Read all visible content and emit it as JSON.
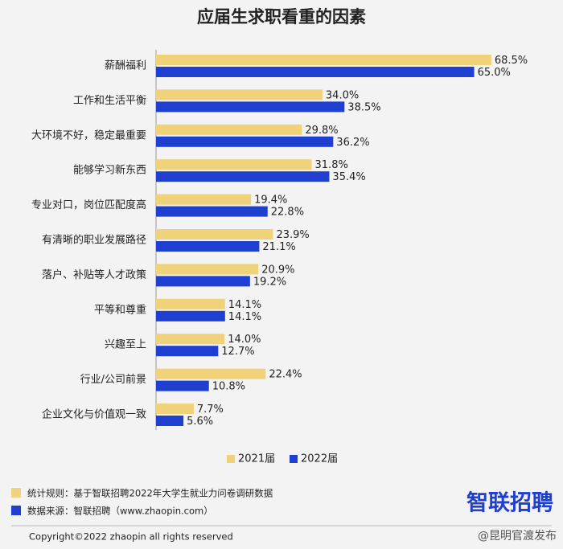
{
  "chart_data": {
    "type": "bar",
    "orientation": "horizontal",
    "title": "应届生求职看重的因素",
    "categories": [
      "薪酬福利",
      "工作和生活平衡",
      "大环境不好，稳定最重要",
      "能够学习新东西",
      "专业对口，岗位匹配度高",
      "有清晰的职业发展路径",
      "落户、补贴等人才政策",
      "平等和尊重",
      "兴趣至上",
      "行业/公司前景",
      "企业文化与价值观一致"
    ],
    "series": [
      {
        "name": "2021届",
        "color": "#f0d27a",
        "values": [
          68.5,
          34.0,
          29.8,
          31.8,
          19.4,
          23.9,
          20.9,
          14.1,
          14.0,
          22.4,
          7.7
        ],
        "value_labels": [
          "68.5%",
          "34.0%",
          "29.8%",
          "31.8%",
          "19.4%",
          "23.9%",
          "20.9%",
          "14.1%",
          "14.0%",
          "22.4%",
          "7.7%"
        ]
      },
      {
        "name": "2022届",
        "color": "#1f3fd1",
        "values": [
          65.0,
          38.5,
          36.2,
          35.4,
          22.8,
          21.1,
          19.2,
          14.1,
          12.7,
          10.8,
          5.6
        ],
        "value_labels": [
          "65.0%",
          "38.5%",
          "36.2%",
          "35.4%",
          "22.8%",
          "21.1%",
          "19.2%",
          "14.1%",
          "12.7%",
          "10.8%",
          "5.6%"
        ]
      }
    ],
    "xlim": [
      0,
      70
    ],
    "legend": "bottom"
  },
  "notes": [
    "统计规则：基于智联招聘2022年大学生就业力问卷调研数据",
    "数据来源：智联招聘（www.zhaopin.com）"
  ],
  "logo": "智联招聘",
  "copyright": "Copyright©2022 zhaopin all rights reserved",
  "watermark": "@昆明官渡发布"
}
